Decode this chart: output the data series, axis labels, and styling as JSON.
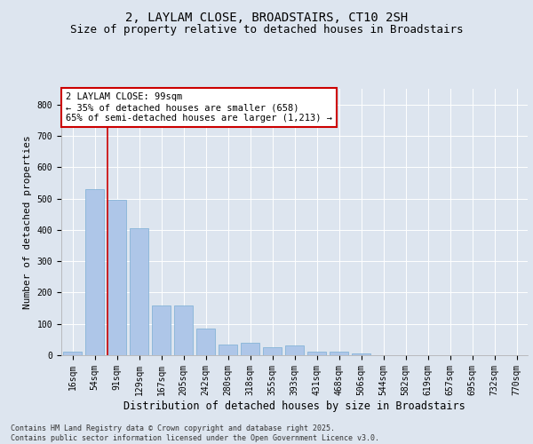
{
  "title_line1": "2, LAYLAM CLOSE, BROADSTAIRS, CT10 2SH",
  "title_line2": "Size of property relative to detached houses in Broadstairs",
  "xlabel": "Distribution of detached houses by size in Broadstairs",
  "ylabel": "Number of detached properties",
  "categories": [
    "16sqm",
    "54sqm",
    "91sqm",
    "129sqm",
    "167sqm",
    "205sqm",
    "242sqm",
    "280sqm",
    "318sqm",
    "355sqm",
    "393sqm",
    "431sqm",
    "468sqm",
    "506sqm",
    "544sqm",
    "582sqm",
    "619sqm",
    "657sqm",
    "695sqm",
    "732sqm",
    "770sqm"
  ],
  "values": [
    10,
    530,
    495,
    405,
    160,
    160,
    85,
    35,
    40,
    25,
    30,
    10,
    10,
    5,
    0,
    0,
    0,
    0,
    0,
    0,
    0
  ],
  "bar_color": "#aec6e8",
  "bar_edgecolor": "#7aadd4",
  "vline_color": "#cc0000",
  "vline_x_index": 2,
  "annotation_text": "2 LAYLAM CLOSE: 99sqm\n← 35% of detached houses are smaller (658)\n65% of semi-detached houses are larger (1,213) →",
  "annotation_box_edgecolor": "#cc0000",
  "annotation_box_facecolor": "#ffffff",
  "ylim": [
    0,
    850
  ],
  "yticks": [
    0,
    100,
    200,
    300,
    400,
    500,
    600,
    700,
    800
  ],
  "background_color": "#dde5ef",
  "plot_background": "#dde5ef",
  "grid_color": "#ffffff",
  "footnote": "Contains HM Land Registry data © Crown copyright and database right 2025.\nContains public sector information licensed under the Open Government Licence v3.0.",
  "title_fontsize": 10,
  "subtitle_fontsize": 9,
  "xlabel_fontsize": 8.5,
  "ylabel_fontsize": 8,
  "tick_fontsize": 7,
  "annotation_fontsize": 7.5,
  "footnote_fontsize": 6
}
